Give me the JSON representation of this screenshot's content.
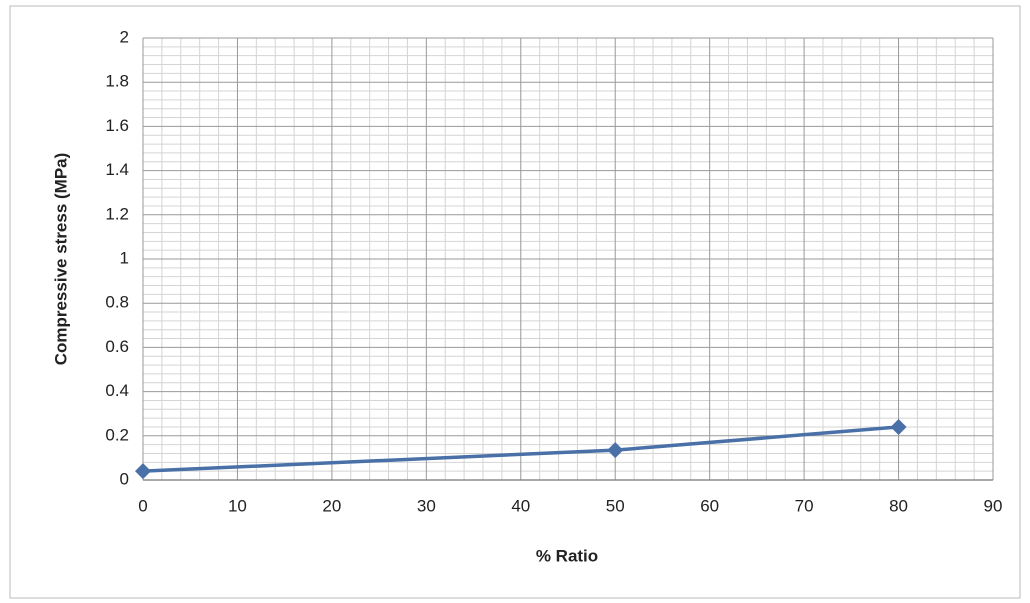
{
  "chart_data": {
    "type": "line",
    "x_label": "% Ratio",
    "y_label": "Compressive  stress (MPa)",
    "xlim": [
      0,
      90
    ],
    "xticks": [
      0,
      10,
      20,
      30,
      40,
      50,
      60,
      70,
      80,
      90
    ],
    "ylim": [
      0,
      2
    ],
    "yticks": [
      0,
      0.2,
      0.4,
      0.6,
      0.8,
      1,
      1.2,
      1.4,
      1.6,
      1.8,
      2
    ],
    "grid": true,
    "series": [
      {
        "color": "#4a70a8",
        "x": [
          0,
          50,
          80
        ],
        "values": [
          0.04,
          0.135,
          0.24
        ]
      }
    ]
  }
}
